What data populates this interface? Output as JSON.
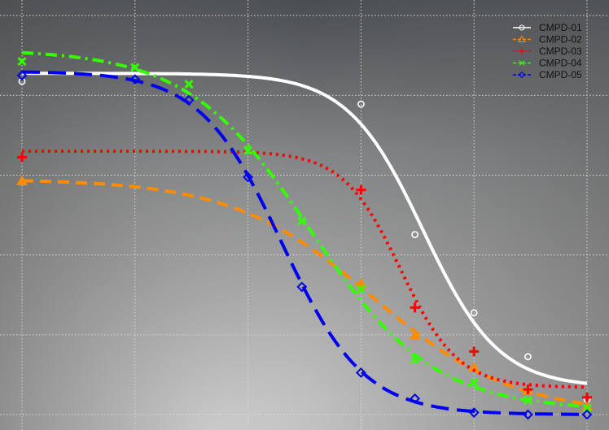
{
  "chart_data": {
    "type": "line",
    "title": "",
    "xlabel": "",
    "ylabel": "",
    "xscale": "log",
    "x": [
      0.001,
      0.01,
      0.03,
      0.1,
      0.3,
      1,
      3,
      10,
      30,
      100
    ],
    "xlim": [
      0.001,
      100
    ],
    "ylim": [
      0,
      110
    ],
    "grid": true,
    "legend_position": "top-right",
    "background": "gray gradient",
    "series": [
      {
        "name": "CMPD-01",
        "color": "#ffffff",
        "line_style": "solid",
        "marker": "circle",
        "values": [
          83.5,
          null,
          null,
          null,
          null,
          77.8,
          45.1,
          25.5,
          14.5,
          3.8
        ]
      },
      {
        "name": "CMPD-02",
        "color": "#ff8c00",
        "line_style": "dashed",
        "marker": "triangle",
        "values": [
          58.5,
          null,
          null,
          null,
          null,
          32.8,
          19.8,
          11.8,
          6.0,
          2.0
        ]
      },
      {
        "name": "CMPD-03",
        "color": "#ff0000",
        "line_style": "dotted",
        "marker": "plus",
        "values": [
          64.5,
          null,
          null,
          null,
          null,
          56.3,
          26.8,
          15.8,
          6.3,
          4.3
        ]
      },
      {
        "name": "CMPD-04",
        "color": "#33ff00",
        "line_style": "dash-dot",
        "marker": "x",
        "values": [
          88.5,
          87.0,
          82.8,
          66.2,
          48.5,
          31.4,
          13.8,
          8.0,
          3.6,
          1.6
        ]
      },
      {
        "name": "CMPD-05",
        "color": "#0000ee",
        "line_style": "long-dash",
        "marker": "diamond",
        "values": [
          85.0,
          84.0,
          78.8,
          59.5,
          32.0,
          10.5,
          4.0,
          0.5,
          0.0,
          0.0
        ]
      }
    ]
  }
}
